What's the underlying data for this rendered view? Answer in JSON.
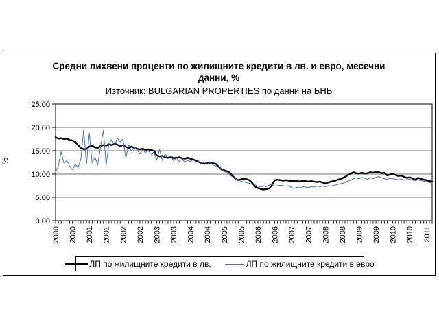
{
  "chart": {
    "title_line1": "Средни лихвени проценти по жилищните кредити в лв. и евро, месечни",
    "title_line2": "данни, %",
    "subtitle": "Източник: BULGARIAN PROPERTIES по данни на БНБ",
    "ylabel": "%"
  },
  "legend": {
    "series1_label": "ЛП по жилищните кредити в лв.",
    "series2_label": "ЛП по жилищните кредити в евро"
  },
  "colors": {
    "series_bgn": "#000000",
    "series_eur": "#4a6db8",
    "gridline": "#707070",
    "axis": "#000000",
    "background": "#ffffff"
  },
  "chart_data": {
    "type": "line",
    "title": "Средни лихвени проценти по жилищните кредити в лв. и евро, месечни данни, %",
    "subtitle": "Източник: BULGARIAN PROPERTIES по данни на БНБ",
    "xlabel": "",
    "ylabel": "%",
    "ylim": [
      0,
      25
    ],
    "y_tick_values": [
      0,
      5,
      10,
      15,
      20,
      25
    ],
    "y_tick_labels": [
      "0.00",
      "5.00",
      "10.00",
      "15.00",
      "20.00",
      "25.00"
    ],
    "grid": "horizontal",
    "legend_position": "bottom",
    "x_axis": {
      "unit": "month",
      "range_label_start": "2000",
      "range_label_end": "2011",
      "minor_tick_every_month": true,
      "label_month_indices": [
        0,
        6,
        12,
        18,
        24,
        30,
        36,
        42,
        48,
        54,
        60,
        66,
        72,
        78,
        84,
        90,
        96,
        102,
        108,
        114,
        120,
        126,
        132
      ],
      "labels": [
        "2000",
        "2000",
        "2001",
        "2001",
        "2002",
        "2002",
        "2003",
        "2003",
        "2004",
        "2004",
        "2005",
        "2005",
        "2006",
        "2006",
        "2007",
        "2007",
        "2008",
        "2008",
        "2009",
        "2009",
        "2010",
        "2010",
        "2011"
      ]
    },
    "series": [
      {
        "name": "ЛП по жилищните кредити в лв.",
        "color": "#000000",
        "stroke_width": 2.4,
        "values": [
          17.9,
          17.6,
          17.7,
          17.5,
          17.6,
          17.3,
          17.2,
          16.9,
          16.2,
          15.6,
          15.3,
          15.4,
          15.9,
          16.1,
          15.7,
          15.6,
          16.0,
          16.2,
          16.1,
          16.4,
          16.2,
          16.5,
          16.3,
          16.0,
          16.2,
          15.8,
          15.6,
          15.9,
          15.6,
          15.4,
          15.3,
          15.4,
          15.2,
          15.3,
          15.1,
          15.0,
          14.0,
          13.8,
          13.9,
          13.6,
          13.5,
          13.7,
          13.4,
          13.5,
          13.6,
          13.4,
          13.3,
          13.5,
          13.3,
          13.1,
          12.9,
          12.6,
          12.3,
          12.2,
          12.3,
          12.4,
          12.3,
          12.2,
          11.6,
          11.0,
          10.8,
          10.6,
          10.3,
          9.6,
          9.0,
          8.7,
          8.9,
          9.0,
          8.9,
          8.7,
          8.1,
          7.3,
          7.0,
          6.8,
          6.7,
          6.8,
          6.9,
          7.6,
          8.7,
          8.8,
          8.7,
          8.6,
          8.7,
          8.6,
          8.5,
          8.6,
          8.5,
          8.4,
          8.6,
          8.5,
          8.4,
          8.5,
          8.4,
          8.3,
          8.4,
          8.2,
          8.0,
          8.2,
          8.4,
          8.5,
          8.7,
          8.9,
          9.1,
          9.4,
          9.8,
          10.1,
          10.4,
          10.2,
          10.1,
          10.3,
          10.1,
          10.2,
          10.4,
          10.3,
          10.5,
          10.4,
          10.2,
          10.3,
          9.7,
          9.9,
          10.1,
          9.8,
          9.6,
          9.7,
          9.4,
          9.2,
          9.3,
          9.1,
          8.8,
          9.2,
          9.0,
          8.8,
          8.7,
          8.5,
          8.4
        ]
      },
      {
        "name": "ЛП по жилищните кредити в евро",
        "color": "#4a6db8",
        "stroke_width": 1,
        "values": [
          10.4,
          11.8,
          14.8,
          12.3,
          12.9,
          11.7,
          10.9,
          12.1,
          11.4,
          13.2,
          19.6,
          12.1,
          18.8,
          12.4,
          13.6,
          12.0,
          15.8,
          19.4,
          11.8,
          16.5,
          17.4,
          16.2,
          17.7,
          16.9,
          17.5,
          13.4,
          16.3,
          14.9,
          15.8,
          15.1,
          14.4,
          15.2,
          14.6,
          15.0,
          14.2,
          14.7,
          13.0,
          15.2,
          12.9,
          14.4,
          13.3,
          13.9,
          12.8,
          13.5,
          12.7,
          13.2,
          12.6,
          12.9,
          12.7,
          13.1,
          12.5,
          12.8,
          12.3,
          12.6,
          12.1,
          12.4,
          12.0,
          11.7,
          11.4,
          11.1,
          10.6,
          10.2,
          9.8,
          9.4,
          9.0,
          8.7,
          8.5,
          8.3,
          8.2,
          8.0,
          7.9,
          7.7,
          7.4,
          7.2,
          7.5,
          7.3,
          7.6,
          7.8,
          7.4,
          7.5,
          7.6,
          7.5,
          7.4,
          7.5,
          7.1,
          6.9,
          7.2,
          7.0,
          7.3,
          7.2,
          7.1,
          7.3,
          7.2,
          7.4,
          7.3,
          7.4,
          7.3,
          7.5,
          7.4,
          7.6,
          7.7,
          7.9,
          8.0,
          8.2,
          8.5,
          8.7,
          9.0,
          9.2,
          9.0,
          9.3,
          9.1,
          8.9,
          9.2,
          9.0,
          9.3,
          9.5,
          9.2,
          9.0,
          8.9,
          9.1,
          9.0,
          8.9,
          8.8,
          8.9,
          8.7,
          8.8,
          8.9,
          8.7,
          8.6,
          8.8,
          8.6,
          8.5,
          8.4,
          8.2,
          8.1
        ]
      }
    ]
  }
}
